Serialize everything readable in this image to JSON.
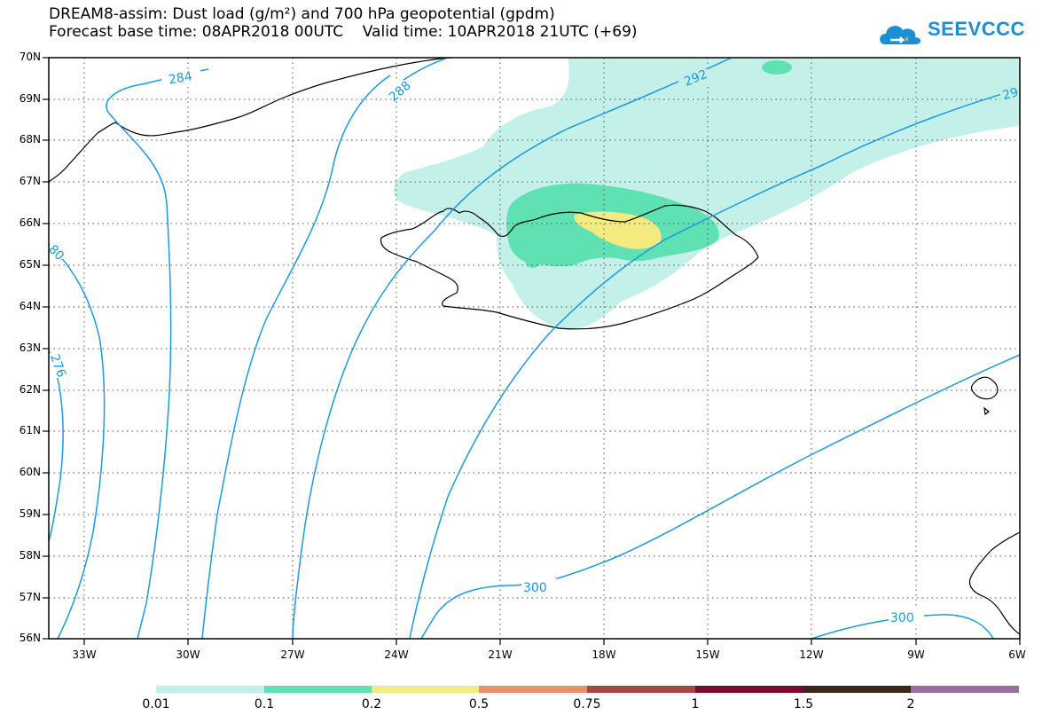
{
  "title": {
    "line1": "DREAM8-assim: Dust load (g/m²) and 700 hPa geopotential (gpdm)",
    "line2": "Forecast base time: 08APR2018 00UTC    Valid time: 10APR2018 21UTC (+69)"
  },
  "logo": {
    "text": "SEEVCCC",
    "color": "#1a8fd6"
  },
  "axes": {
    "lat_labels": [
      "70N",
      "69N",
      "68N",
      "67N",
      "66N",
      "65N",
      "64N",
      "63N",
      "62N",
      "61N",
      "60N",
      "59N",
      "58N",
      "57N",
      "56N"
    ],
    "lon_labels": [
      "33W",
      "30W",
      "27W",
      "24W",
      "21W",
      "18W",
      "15W",
      "12W",
      "9W",
      "6W"
    ]
  },
  "map": {
    "lat_range": [
      56,
      70
    ],
    "lon_range": [
      -34.5,
      -6
    ],
    "contour_color": "#1a9be0",
    "contour_labels": [
      "284",
      "288",
      "292",
      "29",
      "300",
      "300",
      "80",
      "276"
    ]
  },
  "legend": {
    "levels": [
      "0.01",
      "0.1",
      "0.2",
      "0.5",
      "0.75",
      "1",
      "1.5",
      "2"
    ],
    "colors": [
      "#c4f0ea",
      "#5fe1b4",
      "#f3ea80",
      "#e8906a",
      "#a4473f",
      "#7d0b30",
      "#3c2614",
      "#9a6e9e"
    ]
  }
}
